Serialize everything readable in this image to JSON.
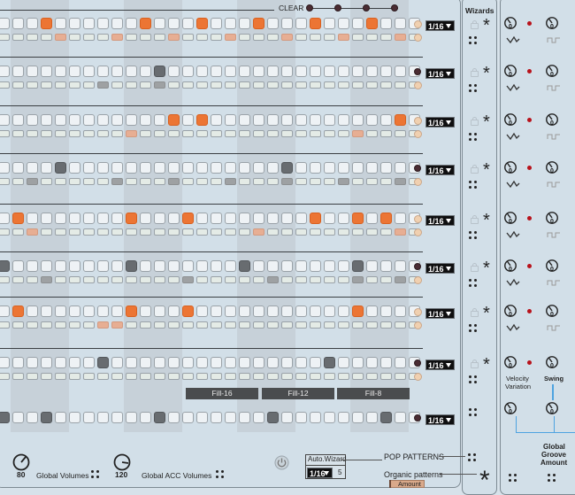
{
  "header": {
    "clear_label": "CLEAR"
  },
  "wizards": {
    "title": "Wizards"
  },
  "tracks": [
    {
      "rate": "1/16",
      "steps": [
        0,
        0,
        0,
        0,
        0,
        0,
        0,
        0,
        0,
        0,
        0,
        0,
        0,
        0,
        0,
        0,
        0,
        0,
        0,
        0,
        0,
        0,
        0,
        0,
        0,
        0,
        0,
        0,
        0,
        0
      ],
      "color": "o",
      "on": [
        3,
        10,
        14,
        18,
        22,
        26
      ],
      "acc": [
        4,
        8,
        12,
        16,
        20,
        24,
        28
      ]
    },
    {
      "rate": "1/16",
      "color": "g",
      "on": [
        11
      ],
      "acc": [
        7,
        11
      ]
    },
    {
      "rate": "1/16",
      "color": "o",
      "on": [
        12,
        14,
        28
      ],
      "acc": [
        9,
        25
      ]
    },
    {
      "rate": "1/16",
      "color": "g",
      "on": [
        4,
        20
      ],
      "acc": [
        2,
        8,
        12,
        16,
        20,
        24,
        28
      ]
    },
    {
      "rate": "1/16",
      "color": "o",
      "on": [
        1,
        9,
        13,
        22,
        25,
        27
      ],
      "acc": [
        2,
        18,
        28
      ]
    },
    {
      "rate": "1/16",
      "color": "g",
      "on": [
        0,
        9,
        17,
        25
      ],
      "acc": [
        3,
        13,
        19,
        25,
        28
      ]
    },
    {
      "rate": "1/16",
      "color": "o",
      "on": [
        1,
        9,
        13,
        25
      ],
      "acc": [
        7,
        8
      ]
    },
    {
      "rate": "1/16",
      "color": "g",
      "on": [
        7,
        23
      ],
      "acc": []
    },
    {
      "rate": "1/16",
      "color": "g",
      "on": [
        0,
        3,
        11,
        19,
        27
      ],
      "acc": []
    }
  ],
  "fills": [
    "Fill-16",
    "Fill-12",
    "Fill-8"
  ],
  "bottom": {
    "global_volumes_value": "80",
    "global_volumes_label": "Global Volumes",
    "global_acc_value": "120",
    "global_acc_label": "Global ACC Volumes",
    "auto_wizard_label": "Auto.Wizard",
    "auto_rate": "1/16",
    "auto_count": "5",
    "pop_patterns_label": "POP PATTERNS",
    "organic_label": "Organic patterns",
    "amount_label": "Amount"
  },
  "right": {
    "knob_value": "0",
    "velocity_label_1": "Velocity",
    "velocity_label_2": "Variation",
    "swing_label": "Swing",
    "global_groove_1": "Global",
    "global_groove_2": "Groove",
    "global_groove_3": "Amount"
  },
  "colors": {
    "accent": "#ec7534",
    "dark_step": "#686c70",
    "panel": "#d2dfe8"
  }
}
